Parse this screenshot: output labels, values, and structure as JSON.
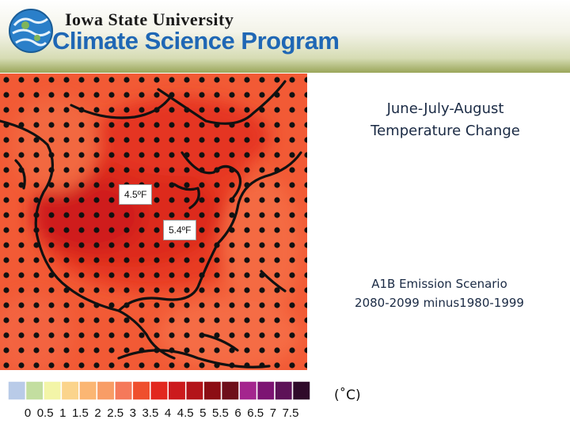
{
  "header": {
    "university": "Iowa State University",
    "program": "Climate Science Program",
    "colors": {
      "program_text": "#1f67b5",
      "band_bottom": "#9aa65a"
    },
    "logo_icon": "globe-icon"
  },
  "title": {
    "line1": "June-July-August",
    "line2": "Temperature Change"
  },
  "scenario": {
    "line1": "A1B Emission Scenario",
    "line2": "2080-2099 minus1980-1999"
  },
  "map": {
    "labels": [
      {
        "id": "label-west",
        "text": "4.5ºF"
      },
      {
        "id": "label-east",
        "text": "5.4ºF"
      }
    ],
    "colors": {
      "warm": "#ef4f2d",
      "hot": "#d8261e",
      "hotter": "#c81a1a",
      "coast": "#111111"
    }
  },
  "legend": {
    "unit": "(˚C)",
    "ticks": [
      "0",
      "0.5",
      "1",
      "1.5",
      "2",
      "2.5",
      "3",
      "3.5",
      "4",
      "4.5",
      "5",
      "5.5",
      "6",
      "6.5",
      "7",
      "7.5"
    ],
    "bins": [
      "#b9cbe8",
      "#c3dea0",
      "#f3f5a8",
      "#fbd48c",
      "#fbb673",
      "#f89d66",
      "#f5795a",
      "#ef4f2d",
      "#e2271e",
      "#cc1a1d",
      "#b3141a",
      "#8c0d14",
      "#6e0e1a",
      "#a4258e",
      "#7d1473",
      "#5d1258",
      "#2f0a2a"
    ]
  }
}
